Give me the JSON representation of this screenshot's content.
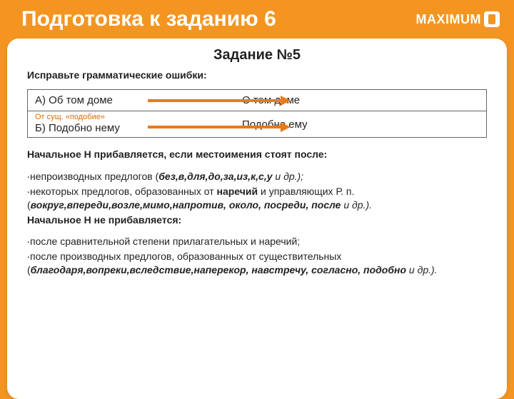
{
  "colors": {
    "brand_orange": "#f49522",
    "arrow_orange": "#e87a1a",
    "annotation_orange": "#e06b00",
    "text": "#222222",
    "border": "#666666",
    "card_bg": "#ffffff"
  },
  "header": {
    "title": "Подготовка к заданию 6",
    "logo_text": "MAXIMUM"
  },
  "card": {
    "task_title": "Задание №5",
    "instruction": "Исправьте  грамматические ошибки:",
    "table": {
      "rows": [
        {
          "left": "А) Об том доме",
          "right": "О том доме",
          "annotation": null
        },
        {
          "left": "Б) Подобно нему",
          "right": "Подобно ему",
          "annotation": "От сущ. «подобие»"
        }
      ]
    },
    "rules": {
      "heading1": "Начальное Н прибавляется, если местоимения стоят после:",
      "bullets1": [
        {
          "pre": "непроизводных предлогов (",
          "bold": "без,в,для,до,за,из,к,с,у",
          "post": " и др.);"
        },
        {
          "pre": "некоторых предлогов, образованных от ",
          "bold_inline": "наречий",
          "mid": " и управляющих Р. п. (",
          "bold": "вокруг,впереди,возле,мимо,напротив, около, посреди, после",
          "post": " и др.)."
        }
      ],
      "heading2": "Начальное Н не прибавляется:",
      "bullets2": [
        {
          "line": "после сравнительной степени прилагательных и наречий;"
        },
        {
          "pre": "после производных предлогов, образованных от существительных (",
          "bold": "благодаря,вопреки,вследствие,наперекор, навстречу, согласно, подобно",
          "post": " и др.)."
        }
      ]
    }
  }
}
